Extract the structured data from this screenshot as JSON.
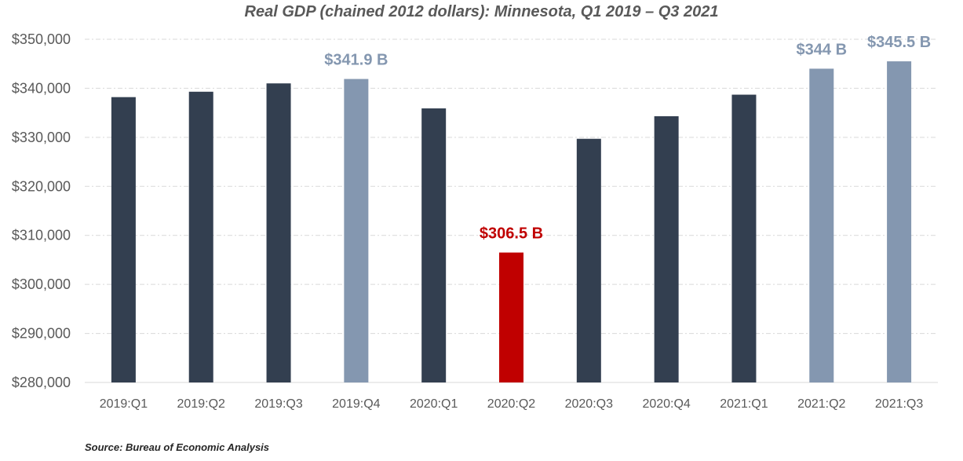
{
  "chart_data": {
    "type": "bar",
    "title": "Real GDP (chained 2012 dollars): Minnesota, Q1 2019 – Q3 2021",
    "xlabel": "",
    "ylabel": "",
    "categories": [
      "2019:Q1",
      "2019:Q2",
      "2019:Q3",
      "2019:Q4",
      "2020:Q1",
      "2020:Q2",
      "2020:Q3",
      "2020:Q4",
      "2021:Q1",
      "2021:Q2",
      "2021:Q3"
    ],
    "values": [
      338200,
      339300,
      341000,
      341900,
      335900,
      306500,
      329700,
      334300,
      338700,
      344000,
      345500
    ],
    "units": "millions of chained 2012 dollars",
    "ylim": [
      280000,
      350000
    ],
    "yticks": [
      280000,
      290000,
      300000,
      310000,
      320000,
      330000,
      340000,
      350000
    ],
    "ytick_labels": [
      "$280,000",
      "$290,000",
      "$300,000",
      "$310,000",
      "$320,000",
      "$330,000",
      "$340,000",
      "$350,000"
    ],
    "grid": true,
    "legend": "none",
    "bar_colors": [
      "#333f50",
      "#333f50",
      "#333f50",
      "#8497b0",
      "#333f50",
      "#c00000",
      "#333f50",
      "#333f50",
      "#333f50",
      "#8497b0",
      "#8497b0"
    ],
    "data_labels": [
      {
        "index": 3,
        "text": "$341.9 B",
        "color": "#8497b0"
      },
      {
        "index": 5,
        "text": "$306.5 B",
        "color": "#c00000"
      },
      {
        "index": 9,
        "text": "$344 B",
        "color": "#8497b0"
      },
      {
        "index": 10,
        "text": "$345.5 B",
        "color": "#8497b0"
      }
    ]
  },
  "source": "Source: Bureau of Economic Analysis",
  "colors": {
    "default_bar": "#333f50",
    "highlight_bar": "#8497b0",
    "trough_bar": "#c00000",
    "gridline": "#d9d9d9",
    "axis_text": "#595959"
  }
}
